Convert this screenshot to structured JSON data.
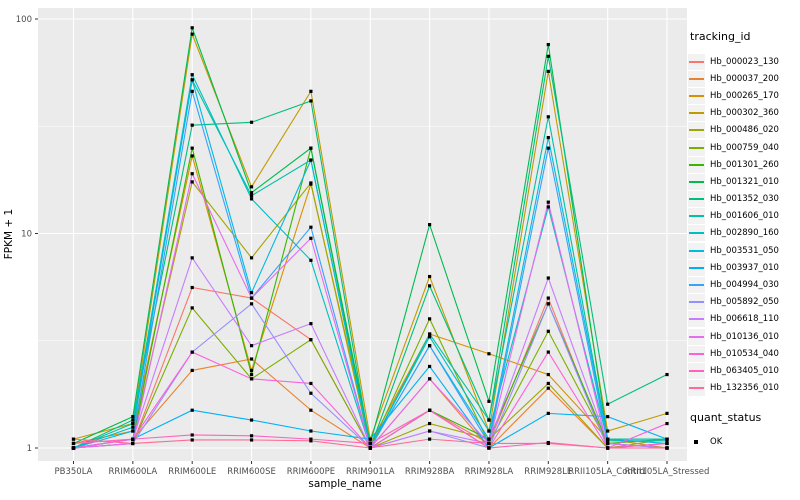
{
  "figure": {
    "background": "#FFFFFF",
    "panel_background": "#EBEBEB",
    "grid_color": "#FFFFFF",
    "tick_label_color": "#4D4D4D",
    "axis_title_color": "#000000",
    "point_color": "#000000"
  },
  "legend": {
    "tracking_title": "tracking_id",
    "quant_title": "quant_status",
    "quant_ok_label": "OK",
    "key_fill": "#F2F2F2"
  },
  "chart_data": {
    "type": "line",
    "title": "",
    "xlabel": "sample_name",
    "ylabel": "FPKM + 1",
    "y_scale": "log10",
    "ylim": [
      0.86,
      115
    ],
    "y_ticks": [
      1,
      10,
      100
    ],
    "y_minor_ticks": [
      3.162,
      31.62
    ],
    "grid": true,
    "legend_position": "right",
    "point_shape": "filled-square",
    "categories": [
      "PB350LA",
      "RRIM600LA",
      "RRIM600LE",
      "RRIM600SE",
      "RRIM600PE",
      "RRIM901LA",
      "RRIM928BA",
      "RRIM928LA",
      "RRIM928LE",
      "RRII105LA_Control",
      "RRII105LA_Stressed"
    ],
    "series": [
      {
        "name": "Hb_000023_130",
        "color": "#F8766D",
        "values": [
          1.0,
          1.05,
          5.6,
          5.0,
          3.2,
          1.0,
          1.5,
          1.05,
          5.0,
          1.0,
          1.05
        ]
      },
      {
        "name": "Hb_000037_200",
        "color": "#EA8331",
        "values": [
          1.0,
          1.1,
          2.3,
          2.6,
          1.5,
          1.0,
          2.1,
          1.0,
          1.9,
          1.0,
          1.0
        ]
      },
      {
        "name": "Hb_000265_170",
        "color": "#D89000",
        "values": [
          1.05,
          1.2,
          23,
          2.3,
          17,
          1.05,
          3.4,
          2.75,
          2.2,
          1.1,
          1.0
        ]
      },
      {
        "name": "Hb_000302_360",
        "color": "#C09B00",
        "values": [
          1.1,
          1.3,
          85,
          16.5,
          46,
          1.1,
          6.3,
          1.2,
          57,
          1.2,
          1.45
        ]
      },
      {
        "name": "Hb_000486_020",
        "color": "#A3A500",
        "values": [
          1.0,
          1.1,
          17.4,
          7.7,
          17.2,
          1.0,
          1.3,
          1.1,
          2.0,
          1.0,
          1.1
        ]
      },
      {
        "name": "Hb_000759_040",
        "color": "#7CAE00",
        "values": [
          1.0,
          1.05,
          4.5,
          2.1,
          3.2,
          1.0,
          4.0,
          1.05,
          3.5,
          1.05,
          1.0
        ]
      },
      {
        "name": "Hb_001301_260",
        "color": "#39B600",
        "values": [
          1.0,
          1.1,
          25,
          2.2,
          25,
          1.0,
          1.5,
          1.1,
          4.7,
          1.05,
          1.1
        ]
      },
      {
        "name": "Hb_001321_010",
        "color": "#00BB4E",
        "values": [
          1.05,
          1.4,
          91,
          15.5,
          25,
          1.05,
          11,
          1.65,
          76,
          1.1,
          1.1
        ]
      },
      {
        "name": "Hb_001352_030",
        "color": "#00BF7D",
        "values": [
          1.0,
          1.35,
          32,
          33,
          41.5,
          1.0,
          5.7,
          1.35,
          67,
          1.6,
          2.2
        ]
      },
      {
        "name": "Hb_001606_010",
        "color": "#00C1A3",
        "values": [
          1.0,
          1.3,
          52,
          15,
          22,
          1.0,
          3.4,
          1.35,
          35,
          1.1,
          1.1
        ]
      },
      {
        "name": "Hb_002890_160",
        "color": "#00BFC4",
        "values": [
          1.0,
          1.25,
          55,
          14.5,
          7.5,
          1.0,
          3.3,
          1.2,
          13.3,
          1.08,
          1.08
        ]
      },
      {
        "name": "Hb_003531_050",
        "color": "#00BAE0",
        "values": [
          1.0,
          1.2,
          52,
          5.3,
          22,
          1.0,
          3.0,
          1.1,
          28,
          1.1,
          1.05
        ]
      },
      {
        "name": "Hb_003937_010",
        "color": "#00B0F6",
        "values": [
          1.0,
          1.1,
          1.5,
          1.35,
          1.2,
          1.1,
          2.4,
          1.0,
          1.45,
          1.4,
          1.1
        ]
      },
      {
        "name": "Hb_004994_030",
        "color": "#35A2FF",
        "values": [
          1.0,
          1.1,
          46,
          5.0,
          10.7,
          1.0,
          3.0,
          1.05,
          25,
          1.05,
          1.0
        ]
      },
      {
        "name": "Hb_005892_050",
        "color": "#9590FF",
        "values": [
          1.0,
          1.05,
          2.8,
          4.7,
          1.8,
          1.0,
          1.2,
          1.0,
          4.7,
          1.0,
          1.0
        ]
      },
      {
        "name": "Hb_006618_110",
        "color": "#C77CFF",
        "values": [
          1.0,
          1.1,
          7.7,
          3.0,
          3.8,
          1.0,
          1.2,
          1.05,
          6.2,
          1.05,
          1.0
        ]
      },
      {
        "name": "Hb_010136_010",
        "color": "#E76BF3",
        "values": [
          1.0,
          1.05,
          19,
          5.0,
          9.5,
          1.0,
          2.1,
          1.05,
          14,
          1.0,
          1.05
        ]
      },
      {
        "name": "Hb_010534_040",
        "color": "#FA62DB",
        "values": [
          1.0,
          1.1,
          2.8,
          2.1,
          2.0,
          1.0,
          1.5,
          1.0,
          2.8,
          1.0,
          1.3
        ]
      },
      {
        "name": "Hb_063405_010",
        "color": "#FF62BC",
        "values": [
          1.05,
          1.1,
          1.15,
          1.14,
          1.1,
          1.05,
          1.5,
          1.0,
          1.06,
          1.0,
          1.05
        ]
      },
      {
        "name": "Hb_132356_010",
        "color": "#FF6A98",
        "values": [
          1.1,
          1.05,
          1.09,
          1.09,
          1.08,
          1.0,
          1.1,
          1.05,
          1.05,
          1.0,
          1.0
        ]
      }
    ],
    "quant_status": "OK"
  }
}
